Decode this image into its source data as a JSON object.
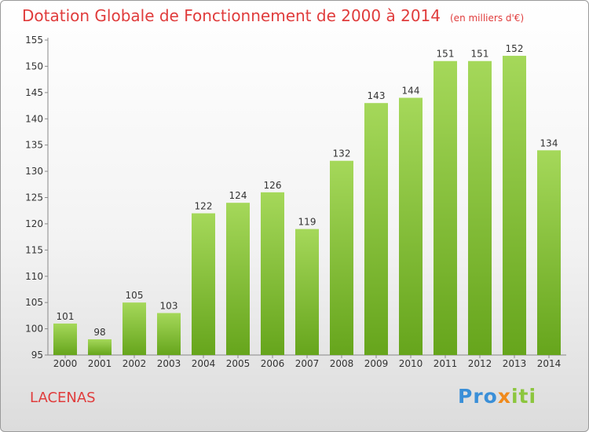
{
  "header": {
    "title": "Dotation Globale de Fonctionnement de 2000 à 2014",
    "subtitle": "(en milliers d'€)"
  },
  "commune": "LACENAS",
  "logo": {
    "text": "Proxiti"
  },
  "colors": {
    "bar_light": "#a5d85a",
    "bar_dark": "#66a51c",
    "title": "#e03c3c"
  },
  "chart_data": {
    "type": "bar",
    "title": "Dotation Globale de Fonctionnement de 2000 à 2014",
    "subtitle": "(en milliers d'€)",
    "categories": [
      "2000",
      "2001",
      "2002",
      "2003",
      "2004",
      "2005",
      "2006",
      "2007",
      "2008",
      "2009",
      "2010",
      "2011",
      "2012",
      "2013",
      "2014"
    ],
    "values": [
      101,
      98,
      105,
      103,
      122,
      124,
      126,
      119,
      132,
      143,
      144,
      151,
      151,
      152,
      134
    ],
    "ylim": [
      95,
      155
    ],
    "yticks": [
      95,
      100,
      105,
      110,
      115,
      120,
      125,
      130,
      135,
      140,
      145,
      150,
      155
    ],
    "grid": false,
    "data_labels": true
  }
}
